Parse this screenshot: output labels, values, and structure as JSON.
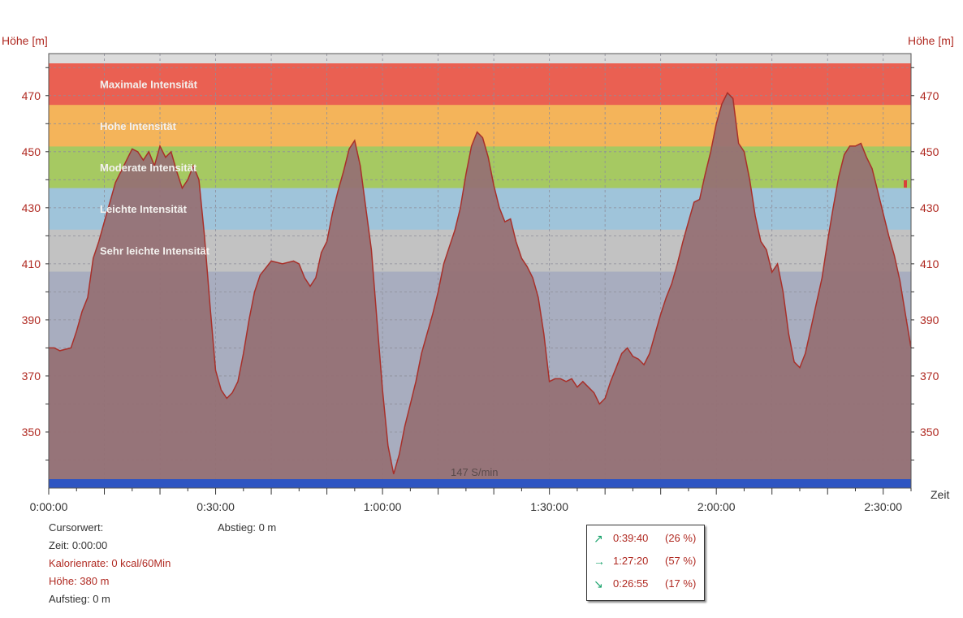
{
  "chart_data": {
    "type": "area",
    "ylabel_left": "Höhe [m]",
    "ylabel_right": "Höhe [m]",
    "xlabel": "Zeit",
    "x_unit": "minutes",
    "xlim": [
      0,
      155
    ],
    "ylim": [
      330,
      485
    ],
    "y_ticks": [
      350,
      370,
      390,
      410,
      430,
      450,
      470
    ],
    "x_ticks": [
      {
        "value": 0,
        "label": "0:00:00"
      },
      {
        "value": 30,
        "label": "0:30:00"
      },
      {
        "value": 60,
        "label": "1:00:00"
      },
      {
        "value": 90,
        "label": "1:30:00"
      },
      {
        "value": 120,
        "label": "2:00:00"
      },
      {
        "value": 150,
        "label": "2:30:00"
      }
    ],
    "zones": [
      {
        "label": "Maximale Intensität",
        "color": "#ea6052"
      },
      {
        "label": "Hohe Intensität",
        "color": "#f4b45a"
      },
      {
        "label": "Moderate Intensität",
        "color": "#a6c962"
      },
      {
        "label": "Leichte Intensität",
        "color": "#9fc4da"
      },
      {
        "label": "Sehr leichte Intensität",
        "color": "#c2c2c2"
      }
    ],
    "plot_background_color": "#a8adbf",
    "area_color": "#956f73",
    "line_color": "#a8302a",
    "bottom_bar": {
      "label": "147 S/min",
      "color": "#2e55c2"
    },
    "series": [
      {
        "x": [
          0,
          1,
          2,
          4,
          5,
          6,
          7,
          8,
          9,
          10,
          11,
          12,
          13,
          14,
          15,
          16,
          17,
          18,
          19,
          20,
          21,
          22,
          23,
          24,
          25,
          26,
          27,
          28,
          29,
          30,
          31,
          32,
          33,
          34,
          35,
          36,
          37,
          38,
          40,
          42,
          44,
          45,
          46,
          47,
          48,
          49,
          50,
          51,
          52,
          53,
          54,
          55,
          56,
          57,
          58,
          59,
          60,
          61,
          62,
          63,
          64,
          65,
          66,
          67,
          68,
          69,
          70,
          71,
          72,
          73,
          74,
          75,
          76,
          77,
          78,
          79,
          80,
          81,
          82,
          83,
          84,
          85,
          86,
          87,
          88,
          89,
          90,
          91,
          92,
          93,
          94,
          95,
          96,
          97,
          98,
          99,
          100,
          101,
          102,
          103,
          104,
          105,
          106,
          107,
          108,
          109,
          110,
          111,
          112,
          113,
          114,
          115,
          116,
          117,
          118,
          119,
          120,
          121,
          122,
          123,
          124,
          125,
          126,
          127,
          128,
          129,
          130,
          131,
          132,
          133,
          134,
          135,
          136,
          137,
          138,
          139,
          140,
          141,
          142,
          143,
          144,
          145,
          146,
          147,
          148,
          149,
          150,
          151,
          152,
          153,
          154,
          155
        ],
        "values": [
          380,
          380,
          379,
          380,
          386,
          393,
          398,
          412,
          418,
          425,
          432,
          439,
          443,
          447,
          451,
          450,
          447,
          450,
          445,
          452,
          448,
          450,
          443,
          437,
          440,
          445,
          440,
          420,
          395,
          372,
          365,
          362,
          364,
          368,
          378,
          390,
          400,
          406,
          411,
          410,
          411,
          410,
          405,
          402,
          405,
          414,
          418,
          428,
          436,
          443,
          451,
          454,
          445,
          430,
          415,
          390,
          365,
          345,
          335,
          342,
          352,
          360,
          368,
          378,
          385,
          392,
          400,
          410,
          416,
          422,
          430,
          442,
          452,
          457,
          455,
          448,
          438,
          430,
          425,
          426,
          418,
          412,
          409,
          405,
          398,
          385,
          368,
          369,
          369,
          368,
          369,
          366,
          368,
          366,
          364,
          360,
          362,
          368,
          373,
          378,
          380,
          377,
          376,
          374,
          378,
          385,
          392,
          398,
          403,
          410,
          418,
          425,
          432,
          433,
          442,
          450,
          460,
          467,
          471,
          469,
          453,
          450,
          440,
          427,
          418,
          415,
          407,
          410,
          400,
          385,
          375,
          373,
          378,
          387,
          396,
          405,
          418,
          430,
          441,
          449,
          452,
          452,
          453,
          448,
          444,
          436,
          428,
          420,
          413,
          404,
          392,
          380
        ]
      }
    ]
  },
  "cursor_panel": {
    "title": "Cursorwert:",
    "time": "Zeit: 0:00:00",
    "calorie_rate": "Kalorienrate: 0 kcal/60Min",
    "height": "Höhe:  380 m",
    "ascent": "Aufstieg: 0 m",
    "descent": "Abstieg: 0 m"
  },
  "summary": [
    {
      "icon": "ascent-arrow-icon",
      "arrow": "↗",
      "time": "0:39:40",
      "percent": "(26 %)"
    },
    {
      "icon": "flat-arrow-icon",
      "arrow": "→",
      "time": "1:27:20",
      "percent": "(57 %)"
    },
    {
      "icon": "descent-arrow-icon",
      "arrow": "↘",
      "time": "0:26:55",
      "percent": "(17 %)"
    }
  ]
}
